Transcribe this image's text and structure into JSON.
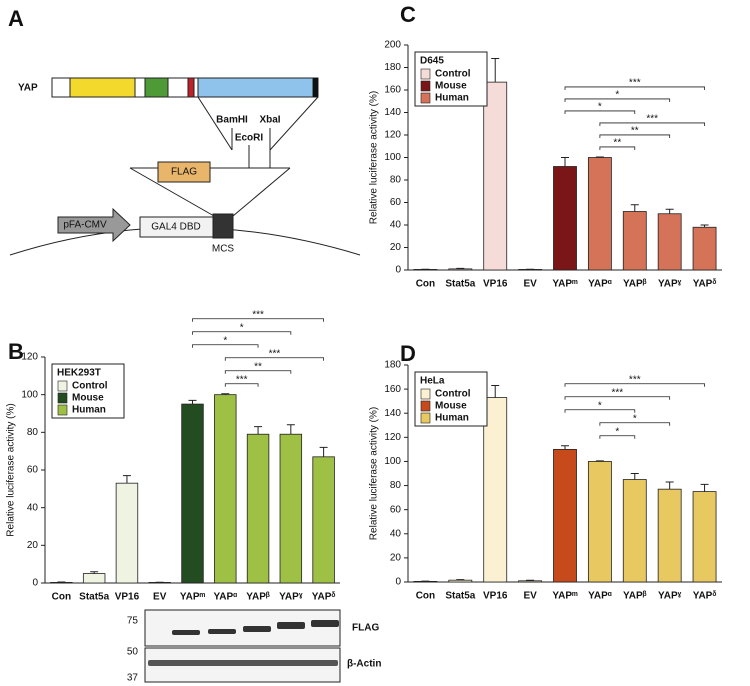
{
  "diagram": {
    "panel": "A",
    "protein": "YAP",
    "sites": [
      "BamHI",
      "EcoRI",
      "XbaI"
    ],
    "tag": "FLAG",
    "promoter": "pFA-CMV",
    "domain": "GAL4 DBD",
    "mcs": "MCS"
  },
  "blot": {
    "markers": [
      "75",
      "50",
      "37"
    ],
    "rows": [
      "FLAG",
      "β-Actin"
    ]
  },
  "chart_data": [
    {
      "type": "bar",
      "panel": "B",
      "legend_title": "HEK293T",
      "legend": "upper left",
      "ylabel": "Relative luciferase activity (%)",
      "categories": [
        "Con",
        "Stat5a",
        "VP16",
        "EV",
        "YAPᵐ",
        "YAPᵅ",
        "YAPᵝ",
        "YAPˠ",
        "YAPᵟ"
      ],
      "values": [
        0.3,
        5,
        53,
        0.3,
        95,
        100,
        79,
        79,
        67
      ],
      "errors": [
        0.2,
        1,
        4,
        0.1,
        2,
        0.5,
        4,
        5,
        5
      ],
      "colors": [
        "#eef3e2",
        "#eef3e2",
        "#eef3e2",
        "#eef3e2",
        "#234d20",
        "#9dc045",
        "#9dc045",
        "#9dc045",
        "#9dc045"
      ],
      "series": [
        {
          "name": "Control",
          "color": "#eef3e2"
        },
        {
          "name": "Mouse",
          "color": "#234d20"
        },
        {
          "name": "Human",
          "color": "#9dc045"
        }
      ],
      "ylim": [
        0,
        120
      ],
      "yticks": [
        0,
        20,
        40,
        60,
        80,
        100,
        120
      ],
      "brackets": [
        {
          "from": "YAPᵐ",
          "to": "YAPᵟ",
          "label": "***"
        },
        {
          "from": "YAPᵐ",
          "to": "YAPˠ",
          "label": "*"
        },
        {
          "from": "YAPᵐ",
          "to": "YAPᵝ",
          "label": "*"
        },
        {
          "from": "YAPᵅ",
          "to": "YAPᵟ",
          "label": "***"
        },
        {
          "from": "YAPᵅ",
          "to": "YAPˠ",
          "label": "**"
        },
        {
          "from": "YAPᵅ",
          "to": "YAPᵝ",
          "label": "***"
        }
      ]
    },
    {
      "type": "bar",
      "panel": "C",
      "legend_title": "D645",
      "legend": "upper left",
      "ylabel": "Relative luciferase activity (%)",
      "categories": [
        "Con",
        "Stat5a",
        "VP16",
        "EV",
        "YAPᵐ",
        "YAPᵅ",
        "YAPᵝ",
        "YAPˠ",
        "YAPᵟ"
      ],
      "values": [
        0.5,
        1,
        167,
        0.5,
        92,
        100,
        52,
        50,
        38
      ],
      "errors": [
        0.2,
        0.5,
        21,
        0.2,
        8,
        0.5,
        6,
        4,
        2
      ],
      "colors": [
        "#f5dcd8",
        "#f5dcd8",
        "#f5dcd8",
        "#f5dcd8",
        "#7a1518",
        "#d47358",
        "#d47358",
        "#d47358",
        "#d47358"
      ],
      "series": [
        {
          "name": "Control",
          "color": "#f5dcd8"
        },
        {
          "name": "Mouse",
          "color": "#7a1518"
        },
        {
          "name": "Human",
          "color": "#d47358"
        }
      ],
      "ylim": [
        0,
        200
      ],
      "yticks": [
        0,
        20,
        40,
        60,
        80,
        100,
        120,
        140,
        160,
        180,
        200
      ],
      "brackets": [
        {
          "from": "YAPᵐ",
          "to": "YAPᵟ",
          "label": "***"
        },
        {
          "from": "YAPᵐ",
          "to": "YAPˠ",
          "label": "*"
        },
        {
          "from": "YAPᵐ",
          "to": "YAPᵝ",
          "label": "*"
        },
        {
          "from": "YAPᵅ",
          "to": "YAPᵟ",
          "label": "***"
        },
        {
          "from": "YAPᵅ",
          "to": "YAPˠ",
          "label": "**"
        },
        {
          "from": "YAPᵅ",
          "to": "YAPᵝ",
          "label": "**"
        }
      ]
    },
    {
      "type": "bar",
      "panel": "D",
      "legend_title": "HeLa",
      "legend": "upper left",
      "ylabel": "Relative luciferase activity (%)",
      "categories": [
        "Con",
        "Stat5a",
        "VP16",
        "EV",
        "YAPᵐ",
        "YAPᵅ",
        "YAPᵝ",
        "YAPˠ",
        "YAPᵟ"
      ],
      "values": [
        0.5,
        1.5,
        153,
        1,
        110,
        100,
        85,
        77,
        75
      ],
      "errors": [
        0.2,
        0.5,
        10,
        0.5,
        3,
        0.5,
        5,
        6,
        6
      ],
      "colors": [
        "#fbf1d2",
        "#fbf1d2",
        "#fbf1d2",
        "#fbf1d2",
        "#c64a1c",
        "#e8c860",
        "#e8c860",
        "#e8c860",
        "#e8c860"
      ],
      "series": [
        {
          "name": "Control",
          "color": "#fbf1d2"
        },
        {
          "name": "Mouse",
          "color": "#c64a1c"
        },
        {
          "name": "Human",
          "color": "#e8c860"
        }
      ],
      "ylim": [
        0,
        180
      ],
      "yticks": [
        0,
        20,
        40,
        60,
        80,
        100,
        120,
        140,
        160,
        180
      ],
      "brackets": [
        {
          "from": "YAPᵐ",
          "to": "YAPᵟ",
          "label": "***"
        },
        {
          "from": "YAPᵐ",
          "to": "YAPˠ",
          "label": "***"
        },
        {
          "from": "YAPᵐ",
          "to": "YAPᵝ",
          "label": "*"
        },
        {
          "from": "YAPᵅ",
          "to": "YAPˠ",
          "label": "*"
        },
        {
          "from": "YAPᵅ",
          "to": "YAPᵝ",
          "label": "*"
        }
      ]
    }
  ]
}
